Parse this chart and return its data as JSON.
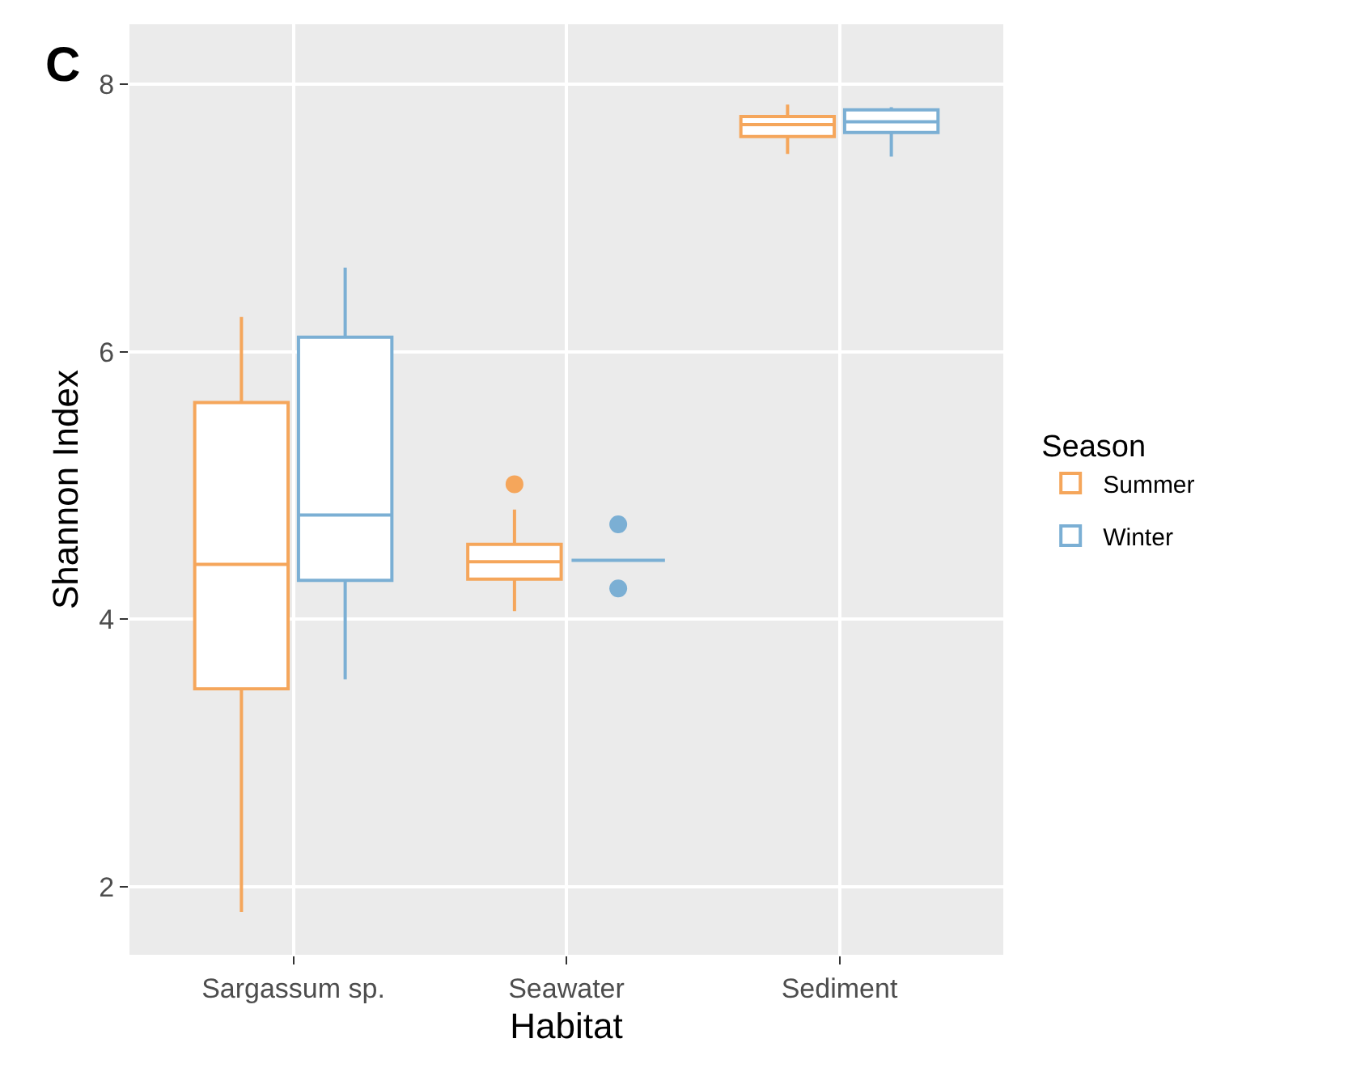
{
  "chart_data": {
    "type": "box",
    "annotations": [
      "C"
    ],
    "xlabel": "Habitat",
    "ylabel": "Shannon Index",
    "legend_title": "Season",
    "categories": [
      "Sargassum sp.",
      "Seawater",
      "Sediment"
    ],
    "series": [
      {
        "name": "Summer",
        "color": "#f5a65b",
        "boxes": [
          {
            "low": 1.81,
            "q1": 3.48,
            "median": 4.41,
            "q3": 5.62,
            "high": 6.26
          },
          {
            "low": 4.06,
            "q1": 4.3,
            "median": 4.43,
            "q3": 4.56,
            "high": 4.82,
            "outliers": [
              5.01
            ]
          },
          {
            "low": 7.48,
            "q1": 7.61,
            "median": 7.7,
            "q3": 7.76,
            "high": 7.85
          }
        ]
      },
      {
        "name": "Winter",
        "color": "#7bafd4",
        "boxes": [
          {
            "low": 3.55,
            "q1": 4.29,
            "median": 4.78,
            "q3": 6.11,
            "high": 6.63
          },
          {
            "low": 4.44,
            "q1": 4.44,
            "median": 4.44,
            "q3": 4.44,
            "high": 4.44,
            "outliers": [
              4.71,
              4.23
            ]
          },
          {
            "low": 7.46,
            "q1": 7.64,
            "median": 7.72,
            "q3": 7.81,
            "high": 7.83
          }
        ]
      }
    ],
    "ylim": [
      1.49,
      8.45
    ],
    "yticks": [
      2,
      4,
      6,
      8
    ],
    "grid": true,
    "legend": "right"
  }
}
